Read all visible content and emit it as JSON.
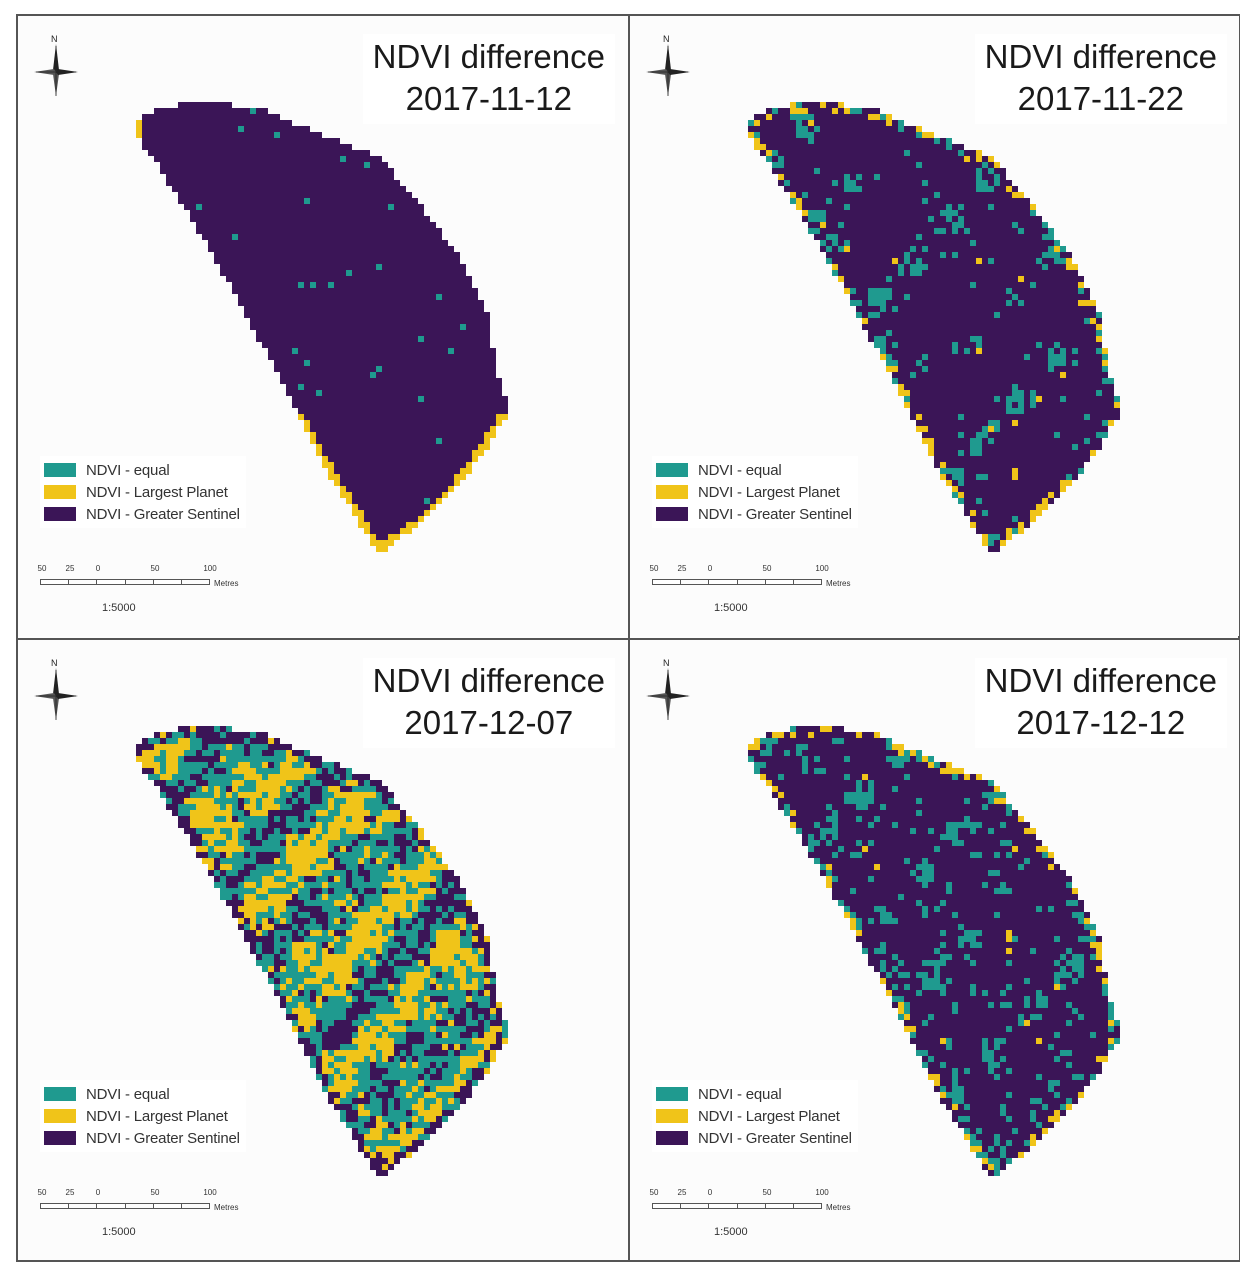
{
  "colors": {
    "equal": "#1f9a8f",
    "largest_planet": "#f0c419",
    "greater_sentinel": "#3b1557"
  },
  "legend": {
    "equal": "NDVI - equal",
    "largest_planet": "NDVI - Largest Planet",
    "greater_sentinel": "NDVI - Greater Sentinel"
  },
  "compass_label": "N",
  "scale": {
    "ticks": [
      "50",
      "25",
      "0",
      "50",
      "100"
    ],
    "unit": "Metres",
    "ratio": "1:5000"
  },
  "panels": [
    {
      "title_line1": "NDVI difference",
      "date": "2017-11-12",
      "share": {
        "equal": 0.01,
        "largest_planet": 0.04,
        "greater_sentinel": 0.95
      },
      "pattern": "edge-only"
    },
    {
      "title_line1": "NDVI difference",
      "date": "2017-11-22",
      "share": {
        "equal": 0.08,
        "largest_planet": 0.04,
        "greater_sentinel": 0.88
      },
      "pattern": "scattered-edge"
    },
    {
      "title_line1": "NDVI difference",
      "date": "2017-12-07",
      "share": {
        "equal": 0.38,
        "largest_planet": 0.44,
        "greater_sentinel": 0.18
      },
      "pattern": "mixed"
    },
    {
      "title_line1": "NDVI difference",
      "date": "2017-12-12",
      "share": {
        "equal": 0.14,
        "largest_planet": 0.07,
        "greater_sentinel": 0.79
      },
      "pattern": "scattered-edge"
    }
  ]
}
